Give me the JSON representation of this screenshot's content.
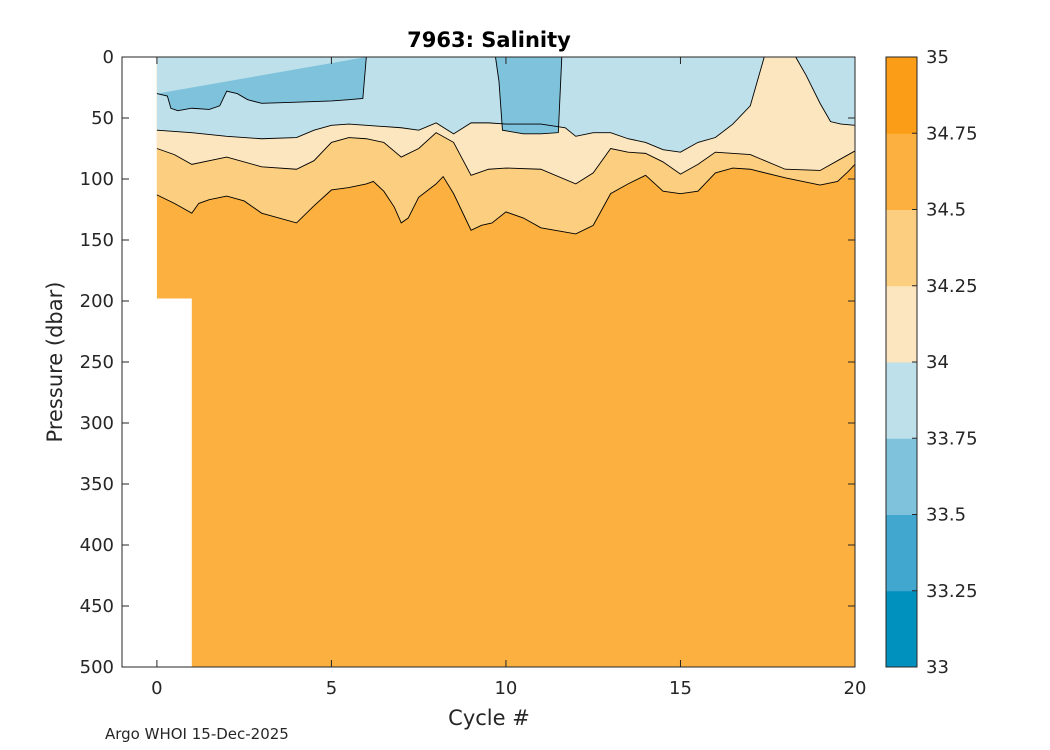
{
  "chart_data": {
    "type": "contour",
    "title": "7963:  Salinity",
    "xlabel": "Cycle #",
    "ylabel": "Pressure (dbar)",
    "xlim": [
      -1,
      20
    ],
    "ylim": [
      500,
      0
    ],
    "x_ticks": [
      0,
      5,
      10,
      15,
      20
    ],
    "y_ticks": [
      0,
      50,
      100,
      150,
      200,
      250,
      300,
      350,
      400,
      450,
      500
    ],
    "colorbar": {
      "range": [
        33,
        35
      ],
      "ticks": [
        "33",
        "33.25",
        "33.5",
        "33.75",
        "34",
        "34.25",
        "34.5",
        "34.75",
        "35"
      ],
      "colors": [
        "#0091BF",
        "#42A7CF",
        "#7FC2DC",
        "#BDE0EA",
        "#FBE6C0",
        "#FBCE80",
        "#FBB03F",
        "#FB9D16"
      ]
    },
    "data_coverage": [
      {
        "cycle_from": 0,
        "cycle_to": 1,
        "max_pressure": 198
      },
      {
        "cycle_from": 1,
        "cycle_to": 20,
        "max_pressure": 500
      }
    ],
    "contour_boundaries": {
      "34.5": {
        "cycles": [
          0,
          0.5,
          1,
          1.2,
          1.5,
          2,
          2.5,
          3,
          4,
          4.5,
          5,
          5.5,
          6,
          6.2,
          6.5,
          6.8,
          7,
          7.2,
          7.5,
          8,
          8.2,
          8.5,
          9,
          9.3,
          9.6,
          10,
          10.5,
          11,
          12,
          12.5,
          13,
          13.5,
          14,
          14.5,
          15,
          15.5,
          16,
          16.5,
          17,
          18,
          19,
          19.5,
          19.8,
          20
        ],
        "pressures": [
          113,
          120,
          128,
          120,
          117,
          114,
          118,
          128,
          136,
          122,
          109,
          107,
          104,
          102,
          110,
          123,
          136,
          132,
          115,
          104,
          98,
          112,
          142,
          138,
          136,
          127,
          132,
          140,
          145,
          138,
          112,
          104,
          97,
          110,
          112,
          110,
          95,
          91,
          92,
          99,
          105,
          102,
          94,
          88
        ]
      },
      "34.25": {
        "cycles": [
          0,
          0.5,
          1,
          2,
          3,
          4,
          4.5,
          5,
          5.5,
          6,
          6.5,
          7,
          7.5,
          8,
          8.5,
          9,
          9.5,
          10,
          11,
          12,
          12.5,
          13,
          13.5,
          14,
          14.5,
          15,
          15.5,
          16,
          17,
          18,
          19,
          19.5,
          20
        ],
        "pressures": [
          75,
          80,
          88,
          82,
          90,
          92,
          85,
          70,
          66,
          67,
          70,
          82,
          75,
          62,
          70,
          97,
          92,
          91,
          92,
          104,
          95,
          75,
          78,
          79,
          86,
          96,
          88,
          78,
          80,
          92,
          93,
          85,
          77
        ]
      },
      "34": {
        "cycles": [
          0,
          0.5,
          1,
          2,
          3,
          4,
          4.5,
          5,
          5.5,
          6,
          7,
          7.5,
          8,
          8.5,
          9,
          9.5,
          10,
          11,
          11.7,
          12,
          12.5,
          13,
          13.5,
          14,
          14.5,
          15,
          15.5,
          16,
          16.5,
          17,
          17.2,
          17.4,
          17.6,
          18,
          18.3,
          18.6,
          19,
          19.3,
          19.6,
          20
        ],
        "pressures": [
          60,
          61,
          62,
          65,
          67,
          66,
          60,
          56,
          55,
          56,
          58,
          60,
          54,
          63,
          54,
          54,
          55,
          55,
          58,
          65,
          62,
          62,
          67,
          70,
          76,
          78,
          70,
          66,
          55,
          40,
          20,
          0,
          0,
          0,
          0,
          15,
          38,
          53,
          55,
          56
        ]
      },
      "33.75": {
        "cycles": [
          0,
          0.3,
          0.4,
          0.6,
          1,
          1.5,
          1.8,
          2,
          2.3,
          2.6,
          3,
          4,
          5,
          5.5,
          5.9,
          6
        ],
        "pressures": [
          30,
          32,
          42,
          44,
          42,
          43,
          40,
          28,
          30,
          35,
          38,
          37,
          36,
          35,
          34,
          0
        ]
      },
      "33.75b": {
        "cycles": [
          9.7,
          9.8,
          9.9,
          10.5,
          11,
          11.5,
          11.6
        ],
        "pressures": [
          0,
          20,
          60,
          63,
          63,
          62,
          0
        ]
      }
    }
  },
  "footer": "Argo WHOI 15-Dec-2025"
}
